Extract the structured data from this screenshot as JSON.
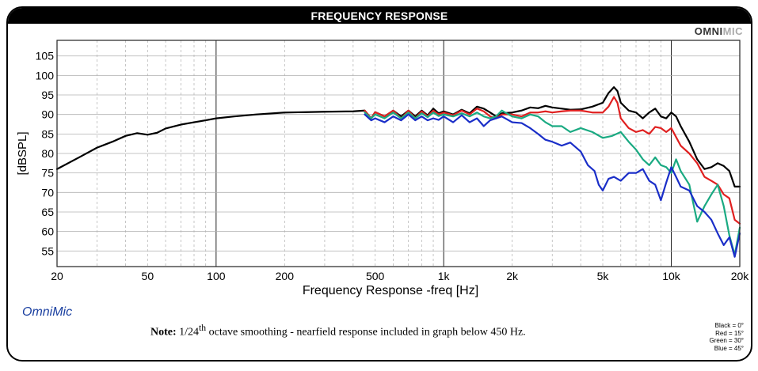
{
  "header": {
    "title": "FREQUENCY RESPONSE",
    "brand_main": "OMNI",
    "brand_light": "MIC"
  },
  "footer": {
    "omnimic_label": "OmniMic",
    "note_label": "Note:",
    "note_pre": "1/24",
    "note_sup": "th",
    "note_post": " octave smoothing - nearfield response included in graph below 450 Hz."
  },
  "legend": [
    "Black = 0°",
    "Red = 15°",
    "Green = 30°",
    "Blue = 45°"
  ],
  "chart_data": {
    "type": "line",
    "xlabel": "Frequency Response -freq [Hz]",
    "ylabel": "[dBSPL]",
    "xscale": "log",
    "xlim": [
      20,
      20000
    ],
    "ylim": [
      51,
      109
    ],
    "grid": true,
    "x_ticks": [
      20,
      50,
      100,
      200,
      500,
      1000,
      2000,
      5000,
      10000,
      20000
    ],
    "x_tick_labels": [
      "20",
      "50",
      "100",
      "200",
      "500",
      "1k",
      "2k",
      "5k",
      "10k",
      "20k"
    ],
    "y_ticks": [
      55,
      60,
      65,
      70,
      75,
      80,
      85,
      90,
      95,
      100,
      105
    ],
    "y_tick_labels": [
      "55",
      "60",
      "65",
      "70",
      "75",
      "80",
      "85",
      "90",
      "95",
      "100",
      "105"
    ],
    "series": [
      {
        "name": "Black = 0°",
        "color": "#000000",
        "points": [
          [
            20,
            76
          ],
          [
            25,
            79
          ],
          [
            30,
            81.5
          ],
          [
            35,
            83
          ],
          [
            40,
            84.5
          ],
          [
            45,
            85.2
          ],
          [
            50,
            84.8
          ],
          [
            55,
            85.3
          ],
          [
            60,
            86.4
          ],
          [
            70,
            87.4
          ],
          [
            80,
            88
          ],
          [
            90,
            88.5
          ],
          [
            100,
            89
          ],
          [
            120,
            89.5
          ],
          [
            150,
            90
          ],
          [
            200,
            90.5
          ],
          [
            250,
            90.6
          ],
          [
            300,
            90.7
          ],
          [
            400,
            90.8
          ],
          [
            450,
            91
          ],
          [
            480,
            89
          ],
          [
            500,
            90.6
          ],
          [
            550,
            89.5
          ],
          [
            600,
            91
          ],
          [
            650,
            89.5
          ],
          [
            700,
            91
          ],
          [
            750,
            89.5
          ],
          [
            800,
            91
          ],
          [
            850,
            89.8
          ],
          [
            900,
            91.5
          ],
          [
            950,
            90.3
          ],
          [
            1000,
            90.8
          ],
          [
            1100,
            90
          ],
          [
            1200,
            91.2
          ],
          [
            1300,
            90.3
          ],
          [
            1400,
            92
          ],
          [
            1500,
            91.5
          ],
          [
            1600,
            90.5
          ],
          [
            1700,
            89.5
          ],
          [
            1800,
            90.3
          ],
          [
            2000,
            90.5
          ],
          [
            2200,
            91
          ],
          [
            2400,
            91.8
          ],
          [
            2600,
            91.6
          ],
          [
            2800,
            92.2
          ],
          [
            3000,
            91.8
          ],
          [
            3300,
            91.5
          ],
          [
            3600,
            91.2
          ],
          [
            4000,
            91.3
          ],
          [
            4500,
            92
          ],
          [
            5000,
            93
          ],
          [
            5300,
            95.5
          ],
          [
            5600,
            97
          ],
          [
            5800,
            96
          ],
          [
            6000,
            93
          ],
          [
            6500,
            91
          ],
          [
            7000,
            90.5
          ],
          [
            7500,
            89
          ],
          [
            8000,
            90.5
          ],
          [
            8500,
            91.5
          ],
          [
            9000,
            89.5
          ],
          [
            9500,
            89
          ],
          [
            10000,
            90.5
          ],
          [
            10500,
            89.5
          ],
          [
            11000,
            87
          ],
          [
            12000,
            83
          ],
          [
            13000,
            78.5
          ],
          [
            14000,
            76
          ],
          [
            15000,
            76.5
          ],
          [
            16000,
            77.5
          ],
          [
            17000,
            76.8
          ],
          [
            18000,
            75.5
          ],
          [
            19000,
            71.5
          ],
          [
            20000,
            71.5
          ]
        ]
      },
      {
        "name": "Red = 15°",
        "color": "#e02020",
        "points": [
          [
            450,
            91
          ],
          [
            480,
            89
          ],
          [
            500,
            90.6
          ],
          [
            550,
            89.5
          ],
          [
            600,
            91
          ],
          [
            650,
            89
          ],
          [
            700,
            91
          ],
          [
            750,
            89
          ],
          [
            800,
            90.8
          ],
          [
            850,
            89.5
          ],
          [
            900,
            91
          ],
          [
            950,
            90
          ],
          [
            1000,
            90.5
          ],
          [
            1100,
            89.8
          ],
          [
            1200,
            91
          ],
          [
            1300,
            90
          ],
          [
            1400,
            91.5
          ],
          [
            1500,
            90.8
          ],
          [
            1600,
            89.5
          ],
          [
            1700,
            89
          ],
          [
            1800,
            90
          ],
          [
            2000,
            90
          ],
          [
            2200,
            89.5
          ],
          [
            2400,
            90.5
          ],
          [
            2600,
            90.5
          ],
          [
            2800,
            90.8
          ],
          [
            3000,
            90.5
          ],
          [
            3300,
            90.8
          ],
          [
            3600,
            91
          ],
          [
            4000,
            91
          ],
          [
            4500,
            90.5
          ],
          [
            5000,
            90.5
          ],
          [
            5300,
            92
          ],
          [
            5600,
            94.5
          ],
          [
            5800,
            93
          ],
          [
            6000,
            89
          ],
          [
            6500,
            86.5
          ],
          [
            7000,
            85.5
          ],
          [
            7500,
            86
          ],
          [
            8000,
            85
          ],
          [
            8500,
            86.8
          ],
          [
            9000,
            86.5
          ],
          [
            9500,
            85.5
          ],
          [
            10000,
            86.5
          ],
          [
            11000,
            82
          ],
          [
            12000,
            80
          ],
          [
            13000,
            77.5
          ],
          [
            14000,
            74
          ],
          [
            15000,
            73
          ],
          [
            16000,
            72
          ],
          [
            17000,
            69.5
          ],
          [
            18000,
            68.5
          ],
          [
            19000,
            63
          ],
          [
            20000,
            62
          ]
        ]
      },
      {
        "name": "Green = 30°",
        "color": "#1aaa82",
        "points": [
          [
            450,
            90.5
          ],
          [
            480,
            89
          ],
          [
            500,
            90
          ],
          [
            550,
            89
          ],
          [
            600,
            90.5
          ],
          [
            650,
            89
          ],
          [
            700,
            90.5
          ],
          [
            750,
            89
          ],
          [
            800,
            90.3
          ],
          [
            850,
            89.3
          ],
          [
            900,
            90.5
          ],
          [
            950,
            89.6
          ],
          [
            1000,
            90
          ],
          [
            1100,
            89.5
          ],
          [
            1200,
            90.3
          ],
          [
            1300,
            89.5
          ],
          [
            1400,
            90.5
          ],
          [
            1500,
            89.5
          ],
          [
            1600,
            89
          ],
          [
            1700,
            89.5
          ],
          [
            1800,
            91
          ],
          [
            2000,
            89.5
          ],
          [
            2200,
            89
          ],
          [
            2400,
            90
          ],
          [
            2600,
            89.5
          ],
          [
            2800,
            88
          ],
          [
            3000,
            87
          ],
          [
            3300,
            87
          ],
          [
            3600,
            85.5
          ],
          [
            4000,
            86.5
          ],
          [
            4500,
            85.5
          ],
          [
            5000,
            84
          ],
          [
            5500,
            84.5
          ],
          [
            6000,
            85.5
          ],
          [
            6500,
            83
          ],
          [
            7000,
            81
          ],
          [
            7500,
            78.5
          ],
          [
            8000,
            77
          ],
          [
            8500,
            79
          ],
          [
            9000,
            77
          ],
          [
            9500,
            76.5
          ],
          [
            10000,
            75
          ],
          [
            10500,
            78.5
          ],
          [
            11000,
            75.5
          ],
          [
            12000,
            72
          ],
          [
            13000,
            62.5
          ],
          [
            14000,
            66.5
          ],
          [
            15000,
            69.5
          ],
          [
            16000,
            72
          ],
          [
            17000,
            66.5
          ],
          [
            18000,
            59
          ],
          [
            19000,
            54
          ],
          [
            20000,
            61
          ]
        ]
      },
      {
        "name": "Blue = 45°",
        "color": "#1a2ec8",
        "points": [
          [
            450,
            90
          ],
          [
            480,
            88.5
          ],
          [
            500,
            89
          ],
          [
            550,
            88
          ],
          [
            600,
            89.5
          ],
          [
            650,
            88.5
          ],
          [
            700,
            90
          ],
          [
            750,
            88.5
          ],
          [
            800,
            89.5
          ],
          [
            850,
            88.5
          ],
          [
            900,
            89
          ],
          [
            950,
            88.6
          ],
          [
            1000,
            89.5
          ],
          [
            1100,
            88
          ],
          [
            1200,
            89.8
          ],
          [
            1300,
            88
          ],
          [
            1400,
            89
          ],
          [
            1500,
            87
          ],
          [
            1600,
            88.5
          ],
          [
            1800,
            89.5
          ],
          [
            2000,
            88
          ],
          [
            2200,
            87.8
          ],
          [
            2400,
            86.5
          ],
          [
            2600,
            85
          ],
          [
            2800,
            83.5
          ],
          [
            3000,
            83
          ],
          [
            3300,
            82
          ],
          [
            3600,
            82.8
          ],
          [
            4000,
            80.5
          ],
          [
            4300,
            77
          ],
          [
            4600,
            75.5
          ],
          [
            4800,
            72
          ],
          [
            5000,
            70.5
          ],
          [
            5300,
            73.5
          ],
          [
            5600,
            74
          ],
          [
            6000,
            73
          ],
          [
            6500,
            75
          ],
          [
            7000,
            75
          ],
          [
            7500,
            76
          ],
          [
            8000,
            73
          ],
          [
            8500,
            72
          ],
          [
            9000,
            68
          ],
          [
            9500,
            72.5
          ],
          [
            10000,
            76.5
          ],
          [
            10500,
            74
          ],
          [
            11000,
            71.5
          ],
          [
            12000,
            70.5
          ],
          [
            13000,
            66.5
          ],
          [
            14000,
            65
          ],
          [
            15000,
            63
          ],
          [
            16000,
            59.5
          ],
          [
            17000,
            56.5
          ],
          [
            18000,
            58.5
          ],
          [
            19000,
            53.5
          ],
          [
            20000,
            59.5
          ]
        ]
      }
    ]
  }
}
